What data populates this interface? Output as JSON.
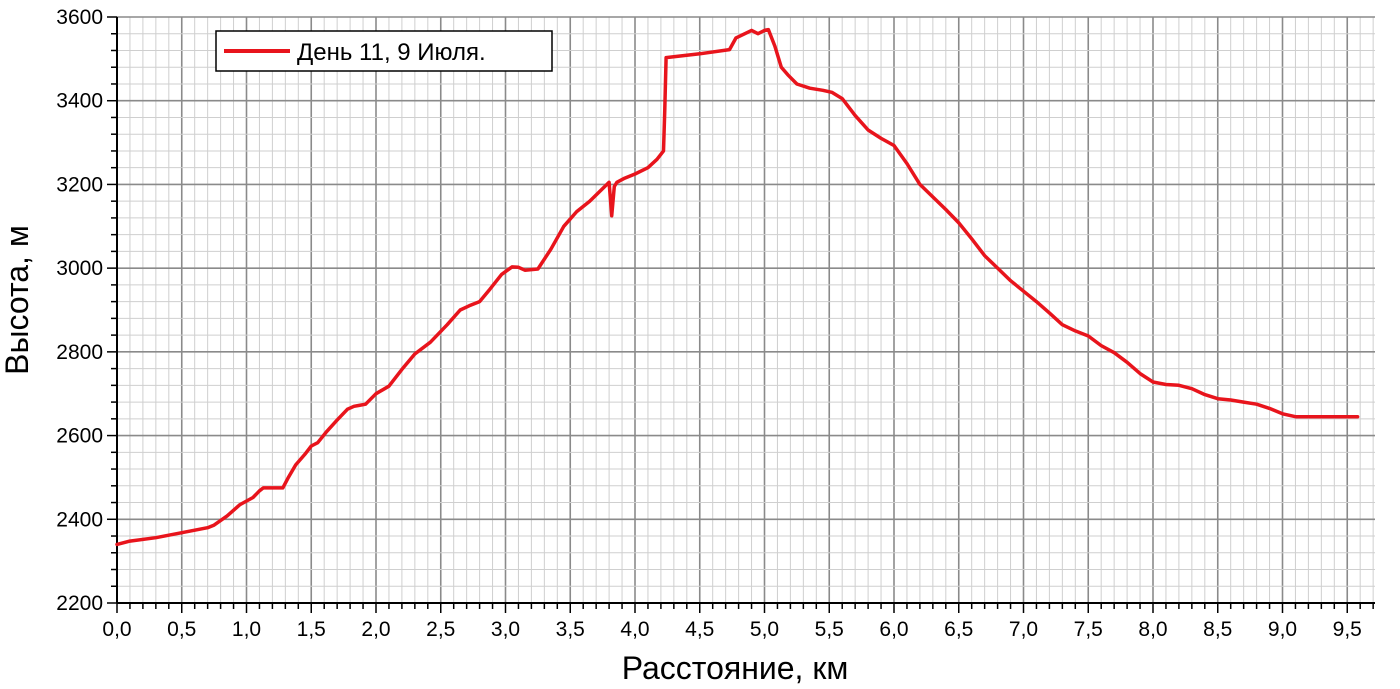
{
  "chart_data": {
    "type": "line",
    "xlabel": "Расстояние, км",
    "ylabel": "Высота, м",
    "xlim": [
      0,
      9.6
    ],
    "ylim": [
      2200,
      3600
    ],
    "x_major_ticks": [
      0,
      0.5,
      1,
      1.5,
      2,
      2.5,
      3,
      3.5,
      4,
      4.5,
      5,
      5.5,
      6,
      6.5,
      7,
      7.5,
      8,
      8.5,
      9,
      9.5
    ],
    "x_tick_labels": [
      "0,0",
      "0,5",
      "1,0",
      "1,5",
      "2,0",
      "2,5",
      "3,0",
      "3,5",
      "4,0",
      "4,5",
      "5,0",
      "5,5",
      "6,0",
      "6,5",
      "7,0",
      "7,5",
      "8,0",
      "8,5",
      "9,0",
      "9,5"
    ],
    "y_major_ticks": [
      2200,
      2400,
      2600,
      2800,
      3000,
      3200,
      3400,
      3600
    ],
    "y_tick_labels": [
      "2200",
      "2400",
      "2600",
      "2800",
      "3000",
      "3200",
      "3400",
      "3600"
    ],
    "grid": true,
    "legend_position": "top-left",
    "series": [
      {
        "name": "День 11, 9 Июля.",
        "color": "#e8141c",
        "x": [
          0.0,
          0.1,
          0.3,
          0.5,
          0.7,
          0.75,
          0.85,
          0.95,
          1.05,
          1.1,
          1.13,
          1.15,
          1.28,
          1.32,
          1.38,
          1.45,
          1.5,
          1.55,
          1.62,
          1.7,
          1.78,
          1.83,
          1.87,
          1.92,
          2.0,
          2.1,
          2.2,
          2.3,
          2.42,
          2.55,
          2.65,
          2.72,
          2.8,
          2.88,
          2.97,
          3.05,
          3.1,
          3.15,
          3.25,
          3.35,
          3.45,
          3.55,
          3.65,
          3.75,
          3.8,
          3.82,
          3.84,
          3.86,
          3.92,
          4.0,
          4.1,
          4.17,
          4.2,
          4.22,
          4.23,
          4.24,
          4.5,
          4.73,
          4.78,
          4.9,
          4.95,
          5.0,
          5.03,
          5.08,
          5.13,
          5.18,
          5.25,
          5.35,
          5.45,
          5.52,
          5.6,
          5.7,
          5.8,
          5.9,
          6.0,
          6.1,
          6.2,
          6.3,
          6.4,
          6.5,
          6.6,
          6.7,
          6.8,
          6.9,
          7.0,
          7.1,
          7.2,
          7.3,
          7.4,
          7.5,
          7.6,
          7.7,
          7.8,
          7.9,
          8.0,
          8.1,
          8.2,
          8.3,
          8.4,
          8.5,
          8.6,
          8.7,
          8.8,
          8.9,
          9.0,
          9.1,
          9.2,
          9.3,
          9.4,
          9.5,
          9.58
        ],
        "y": [
          2340,
          2348,
          2356,
          2368,
          2380,
          2386,
          2408,
          2435,
          2452,
          2468,
          2475,
          2475,
          2475,
          2498,
          2530,
          2555,
          2575,
          2583,
          2610,
          2637,
          2663,
          2670,
          2672,
          2675,
          2700,
          2718,
          2758,
          2795,
          2823,
          2865,
          2900,
          2910,
          2920,
          2950,
          2985,
          3003,
          3002,
          2995,
          2998,
          3045,
          3100,
          3135,
          3160,
          3190,
          3205,
          3125,
          3195,
          3205,
          3215,
          3225,
          3240,
          3260,
          3272,
          3280,
          3380,
          3503,
          3512,
          3522,
          3550,
          3568,
          3560,
          3568,
          3570,
          3530,
          3480,
          3462,
          3440,
          3430,
          3425,
          3420,
          3405,
          3365,
          3330,
          3310,
          3293,
          3250,
          3200,
          3170,
          3140,
          3108,
          3070,
          3030,
          3000,
          2970,
          2945,
          2920,
          2893,
          2865,
          2850,
          2838,
          2815,
          2798,
          2775,
          2748,
          2728,
          2722,
          2720,
          2712,
          2698,
          2688,
          2685,
          2680,
          2675,
          2665,
          2652,
          2645,
          2645,
          2645,
          2645,
          2645,
          2645
        ]
      }
    ]
  }
}
